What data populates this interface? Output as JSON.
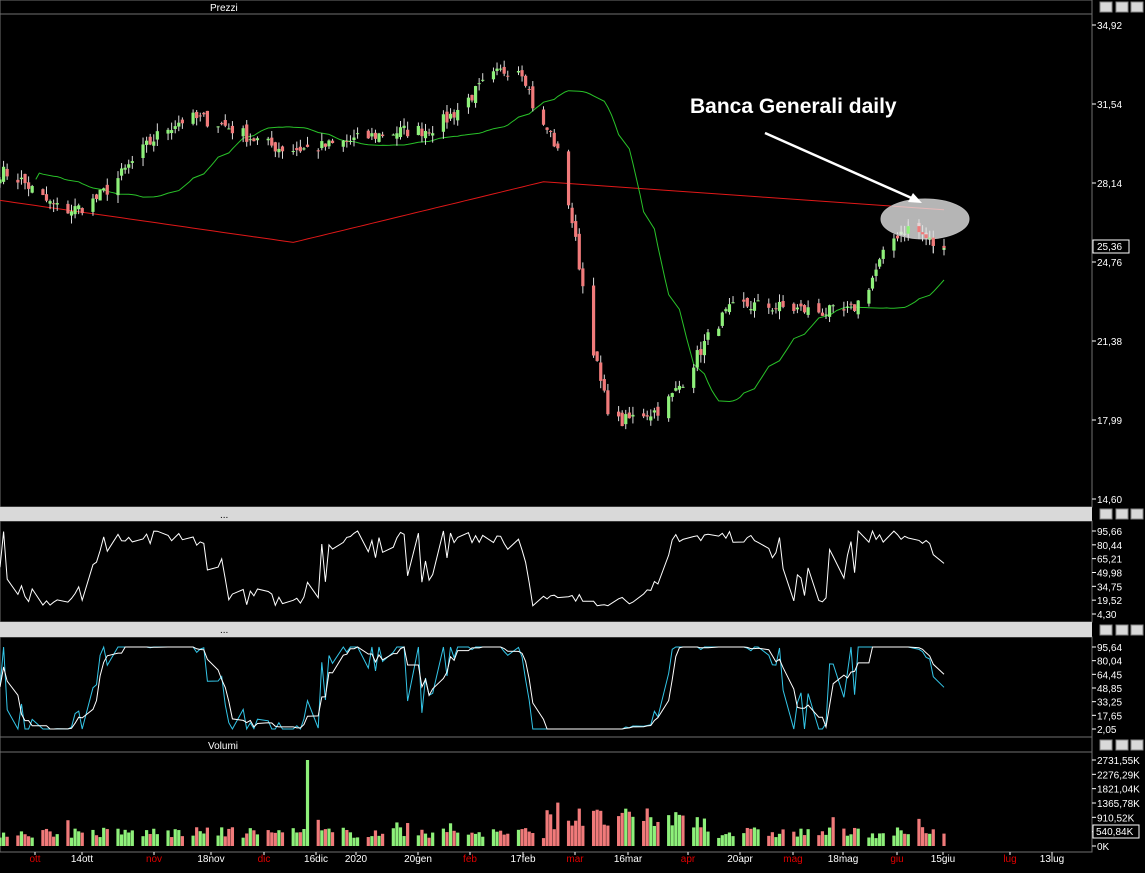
{
  "panels": {
    "price": {
      "title": "Prezzi",
      "ticks": [
        "34,92",
        "31,54",
        "28,14",
        "24,76",
        "21,38",
        "17,99",
        "14,60"
      ],
      "last_price": "25,36"
    },
    "osc1": {
      "title": "...",
      "ticks": [
        "95,66",
        "80,44",
        "65,21",
        "49,98",
        "34,75",
        "19,52",
        "4,30"
      ]
    },
    "osc2": {
      "title": "...",
      "ticks": [
        "95,64",
        "80,04",
        "64,45",
        "48,85",
        "33,25",
        "17,65",
        "2,05"
      ]
    },
    "volume": {
      "title": "Volumi",
      "ticks": [
        "2731,55K",
        "2276,29K",
        "1821,04K",
        "1365,78K",
        "910,52K",
        "455,26K",
        "0K"
      ],
      "last_volume": "540,84K"
    }
  },
  "annotation": "Banca Generali daily",
  "date_labels": [
    {
      "text": "ott",
      "color": "red"
    },
    {
      "text": "14ott",
      "color": "white"
    },
    {
      "text": "nov",
      "color": "red"
    },
    {
      "text": "18nov",
      "color": "white"
    },
    {
      "text": "dic",
      "color": "red"
    },
    {
      "text": "16dic",
      "color": "white"
    },
    {
      "text": "2020",
      "color": "white"
    },
    {
      "text": "20gen",
      "color": "white"
    },
    {
      "text": "feb",
      "color": "red"
    },
    {
      "text": "17feb",
      "color": "white"
    },
    {
      "text": "mar",
      "color": "red"
    },
    {
      "text": "16mar",
      "color": "white"
    },
    {
      "text": "apr",
      "color": "red"
    },
    {
      "text": "20apr",
      "color": "white"
    },
    {
      "text": "mag",
      "color": "red"
    },
    {
      "text": "18mag",
      "color": "white"
    },
    {
      "text": "giu",
      "color": "red"
    },
    {
      "text": "15giu",
      "color": "white"
    },
    {
      "text": "lug",
      "color": "red"
    },
    {
      "text": "13lug",
      "color": "white"
    }
  ],
  "colors": {
    "up": "#8ef07a",
    "down": "#f07a7a",
    "ma_short": "#29c229",
    "ma_long": "#e01818",
    "osc": "#ffffff",
    "stoch_k": "#34c6e8",
    "stoch_d": "#ffffff",
    "date_month": "#e00000",
    "date_week": "#ffffff"
  },
  "chart_data": {
    "type": "candlestick",
    "title": "Banca Generali daily",
    "price_range": [
      14.6,
      34.92
    ],
    "price_anchor_dates": [
      "2019-09-25",
      "2019-10-14",
      "2019-11-18",
      "2019-12-16",
      "2020-01-20",
      "2020-02-17",
      "2020-02-24",
      "2020-03-16",
      "2020-03-24",
      "2020-04-20",
      "2020-05-18",
      "2020-06-05",
      "2020-06-15"
    ],
    "price_anchor_closes": [
      28.6,
      27.0,
      30.9,
      29.6,
      30.4,
      33.1,
      30.5,
      17.9,
      18.3,
      22.9,
      22.6,
      26.2,
      25.36
    ],
    "ma_long_anchors": [
      {
        "date": "2019-09-25",
        "value": 27.4
      },
      {
        "date": "2019-12-16",
        "value": 25.6
      },
      {
        "date": "2020-02-24",
        "value": 28.2
      },
      {
        "date": "2020-06-15",
        "value": 27.0
      }
    ],
    "volume_range": [
      0,
      2731.55
    ],
    "volume_unit": "K",
    "volume_peak": {
      "date": "2019-12-20",
      "value": 2731.55
    },
    "osc_range": [
      4.3,
      95.66
    ],
    "stoch_range": [
      2.05,
      95.64
    ]
  }
}
